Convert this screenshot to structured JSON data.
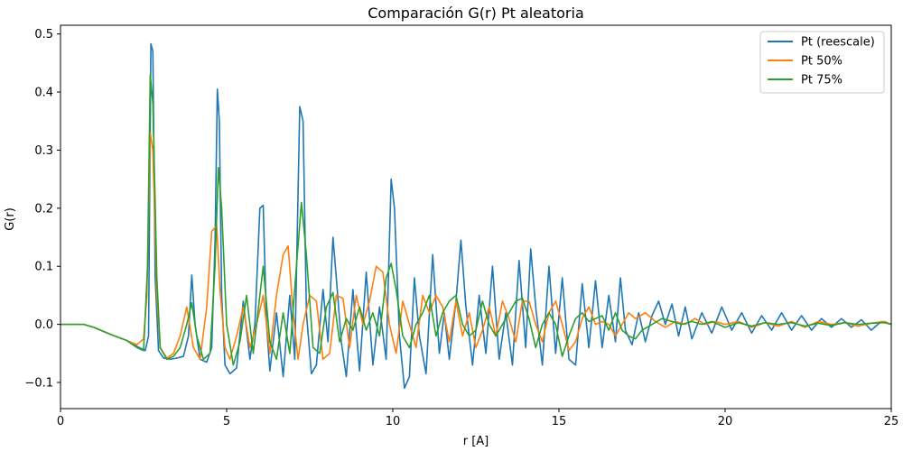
{
  "chart_data": {
    "type": "line",
    "title": "Comparación G(r) Pt aleatoria",
    "xlabel": "r [A]",
    "ylabel": "G(r)",
    "xlim": [
      0,
      25
    ],
    "ylim": [
      -0.145,
      0.515
    ],
    "xticks": [
      0,
      5,
      10,
      15,
      20,
      25
    ],
    "xtick_labels": [
      "0",
      "5",
      "10",
      "15",
      "20",
      "25"
    ],
    "yticks": [
      -0.1,
      0.0,
      0.1,
      0.2,
      0.3,
      0.4,
      0.5
    ],
    "ytick_labels": [
      "−0.1",
      "0.0",
      "0.1",
      "0.2",
      "0.3",
      "0.4",
      "0.5"
    ],
    "grid": false,
    "legend_position": "top-right",
    "series": [
      {
        "name": "Pt (reescale)",
        "color": "#1f77b4",
        "x": [
          0,
          0.7,
          1.0,
          1.5,
          2.0,
          2.3,
          2.55,
          2.65,
          2.72,
          2.78,
          2.85,
          2.95,
          3.1,
          3.3,
          3.5,
          3.7,
          3.85,
          3.95,
          4.05,
          4.2,
          4.4,
          4.55,
          4.65,
          4.72,
          4.78,
          4.85,
          4.95,
          5.1,
          5.3,
          5.5,
          5.7,
          5.85,
          6.0,
          6.1,
          6.2,
          6.3,
          6.5,
          6.7,
          6.9,
          7.05,
          7.2,
          7.3,
          7.4,
          7.55,
          7.7,
          7.9,
          8.05,
          8.2,
          8.3,
          8.45,
          8.6,
          8.8,
          9.0,
          9.2,
          9.4,
          9.6,
          9.8,
          9.95,
          10.05,
          10.2,
          10.35,
          10.5,
          10.65,
          10.8,
          11.0,
          11.2,
          11.4,
          11.55,
          11.7,
          11.9,
          12.05,
          12.2,
          12.4,
          12.6,
          12.8,
          13.0,
          13.2,
          13.4,
          13.6,
          13.8,
          14.0,
          14.15,
          14.3,
          14.5,
          14.7,
          14.9,
          15.1,
          15.3,
          15.5,
          15.7,
          15.9,
          16.1,
          16.3,
          16.5,
          16.7,
          16.85,
          17.0,
          17.2,
          17.4,
          17.6,
          17.8,
          18.0,
          18.2,
          18.4,
          18.6,
          18.8,
          19.0,
          19.3,
          19.6,
          19.9,
          20.2,
          20.5,
          20.8,
          21.1,
          21.4,
          21.7,
          22.0,
          22.3,
          22.6,
          22.9,
          23.2,
          23.5,
          23.8,
          24.1,
          24.4,
          24.7,
          25.0
        ],
        "y": [
          0.0,
          0.0,
          -0.005,
          -0.017,
          -0.028,
          -0.038,
          -0.045,
          -0.02,
          0.483,
          0.47,
          0.08,
          -0.045,
          -0.058,
          -0.06,
          -0.058,
          -0.055,
          -0.02,
          0.085,
          0.0,
          -0.06,
          -0.065,
          -0.04,
          0.14,
          0.405,
          0.35,
          0.05,
          -0.07,
          -0.085,
          -0.075,
          0.04,
          -0.06,
          0.0,
          0.2,
          0.205,
          0.0,
          -0.08,
          0.02,
          -0.09,
          0.05,
          -0.06,
          0.375,
          0.35,
          0.02,
          -0.085,
          -0.07,
          0.06,
          -0.03,
          0.15,
          0.08,
          -0.03,
          -0.09,
          0.06,
          -0.08,
          0.09,
          -0.07,
          0.03,
          -0.06,
          0.25,
          0.2,
          -0.02,
          -0.11,
          -0.09,
          0.08,
          -0.02,
          -0.085,
          0.12,
          -0.05,
          0.02,
          -0.06,
          0.04,
          0.145,
          0.03,
          -0.07,
          0.05,
          -0.05,
          0.1,
          -0.06,
          0.02,
          -0.07,
          0.11,
          -0.04,
          0.13,
          0.03,
          -0.07,
          0.1,
          -0.05,
          0.08,
          -0.06,
          -0.07,
          0.07,
          -0.04,
          0.075,
          -0.04,
          0.05,
          -0.03,
          0.08,
          -0.01,
          -0.035,
          0.02,
          -0.03,
          0.015,
          0.04,
          0.0,
          0.035,
          -0.02,
          0.03,
          -0.025,
          0.02,
          -0.015,
          0.03,
          -0.01,
          0.02,
          -0.015,
          0.015,
          -0.01,
          0.02,
          -0.01,
          0.015,
          -0.01,
          0.01,
          -0.005,
          0.01,
          -0.005,
          0.008,
          -0.01,
          0.005,
          0.0
        ]
      },
      {
        "name": "Pt 50%",
        "color": "#ff7f0e",
        "x": [
          0,
          0.7,
          1.0,
          1.5,
          2.0,
          2.3,
          2.5,
          2.6,
          2.7,
          2.78,
          2.9,
          3.0,
          3.2,
          3.4,
          3.6,
          3.8,
          4.0,
          4.2,
          4.4,
          4.55,
          4.7,
          4.8,
          4.95,
          5.1,
          5.3,
          5.5,
          5.7,
          5.9,
          6.1,
          6.3,
          6.5,
          6.7,
          6.85,
          7.0,
          7.15,
          7.3,
          7.5,
          7.7,
          7.9,
          8.1,
          8.3,
          8.5,
          8.7,
          8.9,
          9.1,
          9.3,
          9.5,
          9.7,
          9.9,
          10.1,
          10.3,
          10.5,
          10.7,
          10.9,
          11.1,
          11.3,
          11.5,
          11.7,
          11.9,
          12.1,
          12.3,
          12.5,
          12.7,
          12.9,
          13.1,
          13.3,
          13.5,
          13.7,
          13.9,
          14.1,
          14.3,
          14.5,
          14.7,
          14.9,
          15.1,
          15.3,
          15.5,
          15.7,
          15.9,
          16.1,
          16.3,
          16.5,
          16.7,
          16.9,
          17.1,
          17.3,
          17.6,
          17.9,
          18.2,
          18.5,
          18.8,
          19.1,
          19.4,
          19.7,
          20.0,
          20.4,
          20.8,
          21.2,
          21.6,
          22.0,
          22.4,
          22.8,
          23.2,
          23.6,
          24.0,
          24.4,
          24.8,
          25.0
        ],
        "y": [
          0.0,
          0.0,
          -0.005,
          -0.017,
          -0.028,
          -0.035,
          -0.025,
          0.05,
          0.33,
          0.3,
          0.05,
          -0.04,
          -0.058,
          -0.05,
          -0.02,
          0.03,
          -0.04,
          -0.06,
          0.03,
          0.16,
          0.17,
          0.06,
          -0.04,
          -0.06,
          -0.02,
          0.03,
          -0.04,
          0.0,
          0.05,
          -0.05,
          0.05,
          0.12,
          0.135,
          0.02,
          -0.06,
          0.0,
          0.05,
          0.04,
          -0.06,
          -0.05,
          0.05,
          0.045,
          -0.04,
          0.05,
          0.0,
          0.04,
          0.1,
          0.09,
          0.0,
          -0.05,
          0.04,
          0.0,
          -0.04,
          0.05,
          0.02,
          0.05,
          0.03,
          -0.03,
          0.04,
          -0.02,
          0.02,
          -0.04,
          -0.01,
          0.03,
          -0.02,
          0.04,
          0.01,
          -0.03,
          0.04,
          0.04,
          0.0,
          -0.03,
          0.02,
          0.04,
          0.0,
          -0.045,
          -0.03,
          0.01,
          0.03,
          0.0,
          0.005,
          0.0,
          -0.02,
          0.0,
          0.02,
          0.01,
          0.02,
          0.005,
          -0.005,
          0.005,
          0.0,
          0.01,
          0.0,
          0.005,
          0.0,
          0.005,
          -0.005,
          0.003,
          -0.003,
          0.005,
          -0.005,
          0.005,
          0.0,
          0.003,
          -0.003,
          0.002,
          0.005,
          0.0
        ]
      },
      {
        "name": "Pt 75%",
        "color": "#2ca02c",
        "x": [
          0,
          0.7,
          1.0,
          1.5,
          2.0,
          2.3,
          2.5,
          2.62,
          2.7,
          2.78,
          2.9,
          3.0,
          3.2,
          3.4,
          3.6,
          3.8,
          3.95,
          4.1,
          4.3,
          4.5,
          4.65,
          4.75,
          4.85,
          5.0,
          5.2,
          5.4,
          5.6,
          5.8,
          6.0,
          6.1,
          6.3,
          6.5,
          6.7,
          6.9,
          7.1,
          7.25,
          7.4,
          7.6,
          7.8,
          8.0,
          8.2,
          8.4,
          8.6,
          8.8,
          9.0,
          9.2,
          9.4,
          9.6,
          9.8,
          9.95,
          10.1,
          10.3,
          10.5,
          10.7,
          10.9,
          11.1,
          11.3,
          11.5,
          11.7,
          11.9,
          12.1,
          12.3,
          12.5,
          12.7,
          12.9,
          13.1,
          13.3,
          13.5,
          13.7,
          13.9,
          14.1,
          14.3,
          14.5,
          14.7,
          14.9,
          15.1,
          15.3,
          15.5,
          15.7,
          15.9,
          16.1,
          16.3,
          16.5,
          16.7,
          16.9,
          17.1,
          17.3,
          17.5,
          17.8,
          18.1,
          18.4,
          18.7,
          19.0,
          19.3,
          19.6,
          20.0,
          20.4,
          20.8,
          21.2,
          21.6,
          22.0,
          22.4,
          22.8,
          23.2,
          23.6,
          24.0,
          24.4,
          24.8,
          25.0
        ],
        "y": [
          0.0,
          0.0,
          -0.005,
          -0.017,
          -0.028,
          -0.04,
          -0.045,
          0.1,
          0.43,
          0.38,
          0.08,
          -0.04,
          -0.06,
          -0.055,
          -0.04,
          0.0,
          0.037,
          -0.02,
          -0.06,
          -0.05,
          0.1,
          0.27,
          0.2,
          0.0,
          -0.07,
          -0.03,
          0.05,
          -0.05,
          0.05,
          0.1,
          -0.03,
          -0.06,
          0.02,
          -0.05,
          0.1,
          0.21,
          0.12,
          -0.04,
          -0.05,
          0.03,
          0.055,
          -0.03,
          0.01,
          -0.01,
          0.03,
          -0.01,
          0.02,
          -0.02,
          0.08,
          0.105,
          0.06,
          -0.02,
          -0.04,
          0.0,
          0.02,
          0.05,
          -0.02,
          0.02,
          0.04,
          0.05,
          0.0,
          -0.02,
          -0.01,
          0.04,
          0.0,
          -0.02,
          0.0,
          0.02,
          0.04,
          0.045,
          0.01,
          -0.04,
          0.0,
          0.02,
          0.0,
          -0.055,
          -0.02,
          0.01,
          0.02,
          0.005,
          0.01,
          0.015,
          -0.01,
          0.02,
          -0.01,
          -0.02,
          -0.025,
          -0.01,
          0.0,
          0.01,
          0.005,
          0.0,
          0.005,
          0.0,
          0.005,
          -0.005,
          0.003,
          -0.003,
          0.003,
          0.0,
          0.003,
          -0.003,
          0.002,
          -0.002,
          0.003,
          0.0,
          0.002,
          0.003,
          0.0
        ]
      }
    ]
  }
}
